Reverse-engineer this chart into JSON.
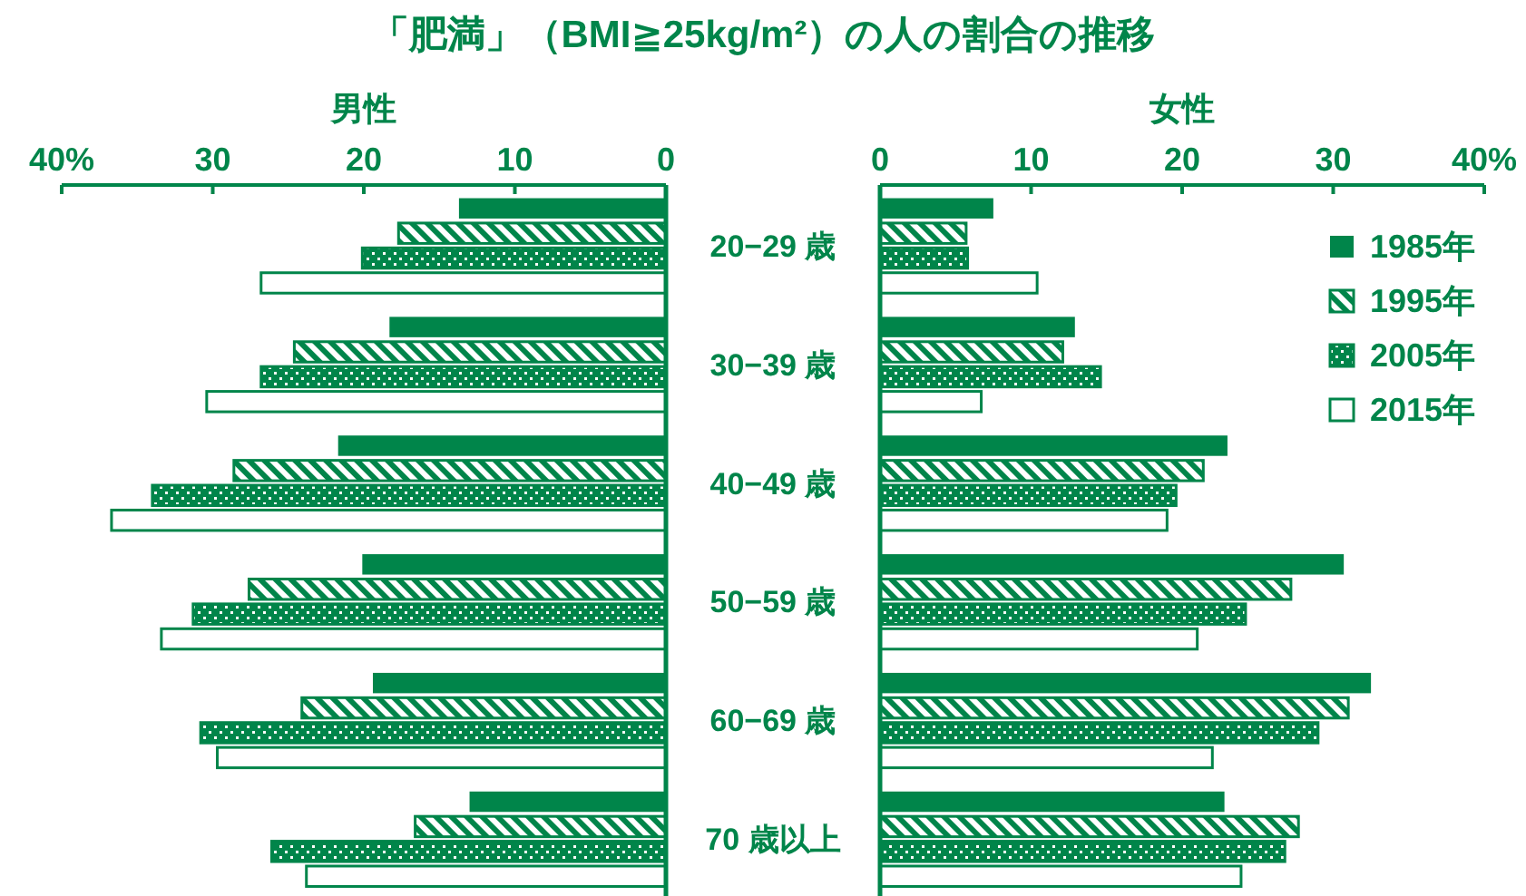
{
  "chart_data": [
    {
      "type": "bar",
      "orientation": "horizontal",
      "title": "「肥満」（BMI≧25kg/m²）の人の割合の推移",
      "xlabel": "男性",
      "categories": [
        "20−29 歳",
        "30−39 歳",
        "40−49 歳",
        "50−59 歳",
        "60−69 歳",
        "70 歳以上"
      ],
      "xlim": [
        40,
        0
      ],
      "xticks": [
        {
          "value": 40,
          "label": "40%"
        },
        30,
        20,
        10,
        0
      ],
      "legend": false,
      "series": [
        {
          "color": "#00854a",
          "values": [
            13.7,
            18.3,
            21.7,
            20.1,
            19.4,
            13.0
          ]
        },
        {
          "color": "#00854a",
          "values": [
            17.7,
            24.6,
            28.6,
            27.6,
            24.1,
            16.6
          ]
        },
        {
          "color": "#00854a",
          "values": [
            20.1,
            26.8,
            34.0,
            31.3,
            30.8,
            26.1
          ]
        },
        {
          "color": "#00854a",
          "values": [
            26.8,
            30.4,
            36.7,
            33.4,
            29.7,
            23.8
          ]
        }
      ]
    },
    {
      "type": "bar",
      "orientation": "horizontal",
      "xlabel": "女性",
      "categories": [
        null,
        null,
        null,
        null,
        null,
        null
      ],
      "tick_labels": "x",
      "xlim": [
        0,
        40
      ],
      "xticks": [
        0,
        10,
        20,
        30,
        {
          "value": 40,
          "label": "40%"
        }
      ],
      "legend": "top right",
      "series": [
        {
          "name": "1985年",
          "color": "#00854a",
          "values": [
            7.5,
            12.9,
            23.0,
            30.7,
            32.5,
            22.8
          ]
        },
        {
          "name": "1995年",
          "color": "#00854a",
          "values": [
            5.7,
            12.1,
            21.4,
            27.2,
            31.0,
            27.7
          ]
        },
        {
          "name": "2005年",
          "color": "#00854a",
          "values": [
            5.8,
            14.6,
            19.6,
            24.2,
            29.0,
            26.8
          ]
        },
        {
          "name": "2015年",
          "color": "#00854a",
          "values": [
            10.4,
            6.7,
            19.0,
            21.0,
            22.0,
            23.9
          ]
        }
      ]
    }
  ]
}
